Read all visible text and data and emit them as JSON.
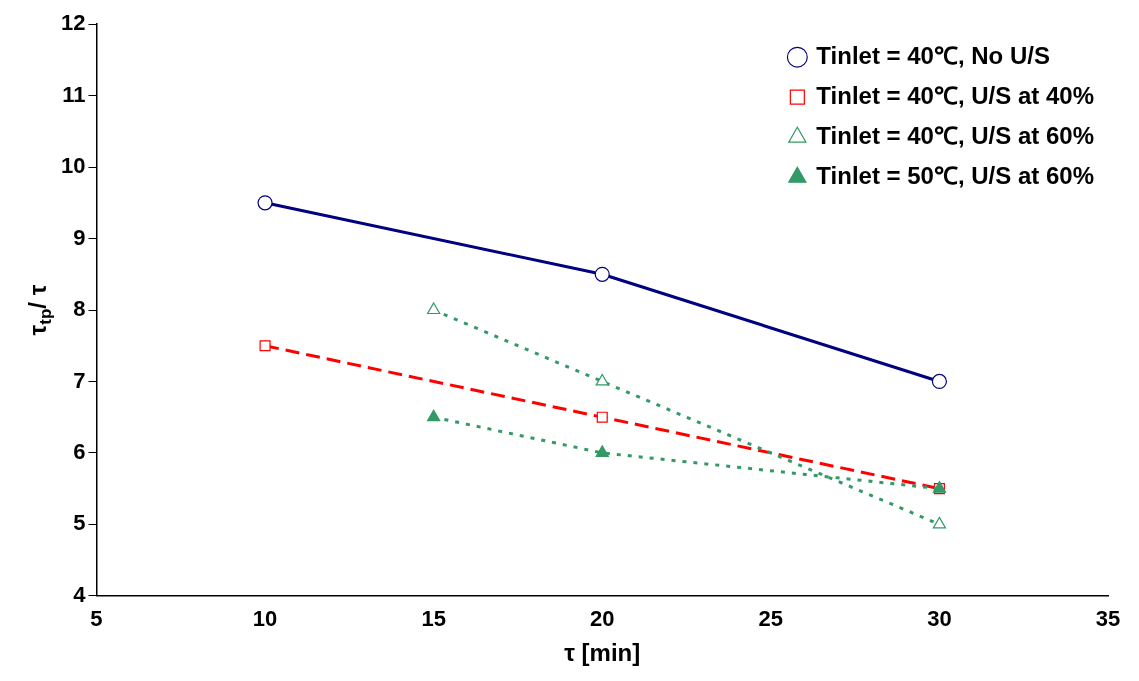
{
  "chart_data": {
    "type": "line",
    "xlabel": "τ [min]",
    "ylabel": "τ$_{tp}$/ τ",
    "xlim": [
      5,
      35
    ],
    "xticks": [
      5,
      10,
      15,
      20,
      25,
      30,
      35
    ],
    "ylim": [
      4,
      12
    ],
    "yticks": [
      4,
      5,
      6,
      7,
      8,
      9,
      10,
      11,
      12
    ],
    "grid": false,
    "legend": "top right",
    "series": [
      {
        "name": "Tinlet = 40℃, No U/S",
        "color": "#000080",
        "x": [
          10,
          20,
          30
        ],
        "values": [
          9.5,
          8.5,
          7
        ],
        "marker": "circle",
        "line_style": "solid"
      },
      {
        "name": "Tinlet = 40℃, U/S at 40%",
        "color": "#ff0000",
        "x": [
          10,
          20,
          30
        ],
        "values": [
          7.5,
          6.5,
          5.5
        ],
        "marker": "square",
        "line_style": "dashed"
      },
      {
        "name": "Tinlet = 40℃, U/S at 60%",
        "color": "#339966",
        "x": [
          15,
          20,
          30
        ],
        "values": [
          8,
          7,
          5
        ],
        "marker": "triangle",
        "line_style": "dotted"
      },
      {
        "name": "Tinlet = 50℃, U/S at 60%",
        "color": "#339966",
        "x": [
          15,
          20,
          30
        ],
        "values": [
          6.5,
          6,
          5.5
        ],
        "marker": "triangle",
        "line_style": "dotted"
      }
    ]
  }
}
